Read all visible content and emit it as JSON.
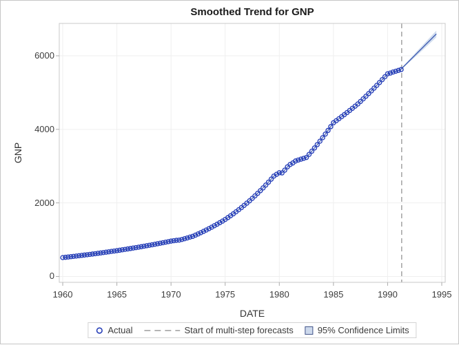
{
  "chart": {
    "title": "Smoothed Trend for GNP",
    "xlabel": "DATE",
    "ylabel": "GNP"
  },
  "legend": {
    "actual": "Actual",
    "forecast_start": "Start of multi-step forecasts",
    "confidence": "95% Confidence Limits"
  },
  "colors": {
    "marker": "#2840b8",
    "trend_line": "#3a57b0",
    "confidence_band": "#cbd8ec",
    "forecast_start_line": "#9b9b9b",
    "grid": "#efefef",
    "frame": "#c9c9c9",
    "tick": "#ababab",
    "text": "#3c3c3c"
  },
  "chart_data": {
    "type": "scatter",
    "title": "Smoothed Trend for GNP",
    "xlabel": "DATE",
    "ylabel": "GNP",
    "xlim": [
      1959.68,
      1995.32
    ],
    "ylim": [
      -160,
      6880
    ],
    "xticks": [
      1960,
      1965,
      1970,
      1975,
      1980,
      1985,
      1990,
      1995
    ],
    "yticks": [
      0,
      2000,
      4000,
      6000
    ],
    "grid": true,
    "legend_position": "bottom",
    "series": [
      {
        "name": "Actual",
        "type": "scatter-line",
        "marker": "open-circle",
        "x_start": 1960.0,
        "x_step": 0.25,
        "values": [
          513,
          521,
          529,
          538,
          546,
          555,
          564,
          573,
          582,
          591,
          600,
          610,
          619,
          629,
          639,
          649,
          660,
          670,
          681,
          691,
          702,
          713,
          725,
          736,
          748,
          760,
          772,
          784,
          796,
          809,
          822,
          835,
          848,
          861,
          875,
          889,
          903,
          917,
          932,
          946,
          961,
          972,
          982,
          988,
          1005,
          1026,
          1047,
          1070,
          1090,
          1123,
          1156,
          1190,
          1226,
          1262,
          1300,
          1339,
          1379,
          1420,
          1462,
          1505,
          1550,
          1600,
          1651,
          1703,
          1758,
          1814,
          1872,
          1932,
          1994,
          2057,
          2123,
          2191,
          2261,
          2333,
          2408,
          2485,
          2564,
          2646,
          2730,
          2778,
          2820,
          2815,
          2890,
          2980,
          3045,
          3086,
          3140,
          3165,
          3190,
          3212,
          3235,
          3319,
          3405,
          3494,
          3584,
          3677,
          3773,
          3871,
          3971,
          4074,
          4180,
          4234,
          4288,
          4344,
          4399,
          4456,
          4513,
          4572,
          4630,
          4690,
          4759,
          4829,
          4901,
          4973,
          5046,
          5121,
          5196,
          5273,
          5351,
          5430,
          5510,
          5530,
          5558,
          5580,
          5602,
          5626
        ]
      },
      {
        "name": "Smoothed Trend forecast",
        "type": "line",
        "x": [
          1991.25,
          1991.5,
          1991.75,
          1992,
          1992.25,
          1992.5,
          1992.75,
          1993,
          1993.25,
          1993.5,
          1993.75,
          1994,
          1994.25,
          1994.5
        ],
        "values": [
          5640,
          5713,
          5786,
          5860,
          5933,
          6006,
          6080,
          6153,
          6226,
          6300,
          6373,
          6446,
          6520,
          6593
        ]
      },
      {
        "name": "95% Confidence Limits",
        "type": "band",
        "x": [
          1991.25,
          1991.5,
          1991.75,
          1992,
          1992.25,
          1992.5,
          1992.75,
          1993,
          1993.25,
          1993.5,
          1993.75,
          1994,
          1994.25,
          1994.5
        ],
        "lower": [
          5625,
          5689,
          5754,
          5821,
          5888,
          5955,
          6023,
          6091,
          6159,
          6228,
          6296,
          6364,
          6434,
          6503
        ],
        "upper": [
          5655,
          5737,
          5818,
          5899,
          5978,
          6057,
          6137,
          6215,
          6293,
          6372,
          6450,
          6528,
          6606,
          6683
        ]
      }
    ],
    "annotations": [
      {
        "name": "Start of multi-step forecasts",
        "type": "vline",
        "x": 1991.3,
        "style": "dashed"
      }
    ]
  }
}
